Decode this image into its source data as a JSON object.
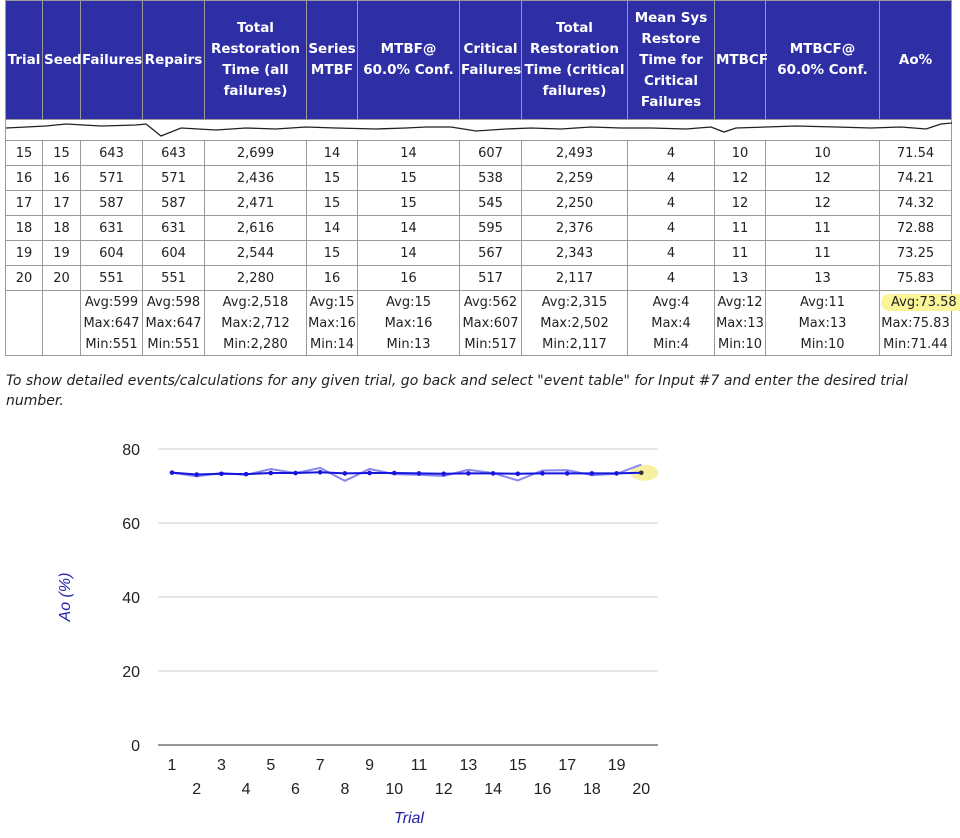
{
  "table": {
    "headers": [
      "Trial",
      "Seed",
      "Failures",
      "Repairs",
      "Total Restoration Time (all failures)",
      "Series MTBF",
      "MTBF@ 60.0% Conf.",
      "Critical Failures",
      "Total Restoration Time (critical failures)",
      "Mean Sys Restore Time for Critical Failures",
      "MTBCF",
      "MTBCF@ 60.0% Conf.",
      "Ao%"
    ],
    "rows": [
      [
        "15",
        "15",
        "643",
        "643",
        "2,699",
        "14",
        "14",
        "607",
        "2,493",
        "4",
        "10",
        "10",
        "71.54"
      ],
      [
        "16",
        "16",
        "571",
        "571",
        "2,436",
        "15",
        "15",
        "538",
        "2,259",
        "4",
        "12",
        "12",
        "74.21"
      ],
      [
        "17",
        "17",
        "587",
        "587",
        "2,471",
        "15",
        "15",
        "545",
        "2,250",
        "4",
        "12",
        "12",
        "74.32"
      ],
      [
        "18",
        "18",
        "631",
        "631",
        "2,616",
        "14",
        "14",
        "595",
        "2,376",
        "4",
        "11",
        "11",
        "72.88"
      ],
      [
        "19",
        "19",
        "604",
        "604",
        "2,544",
        "15",
        "14",
        "567",
        "2,343",
        "4",
        "11",
        "11",
        "73.25"
      ],
      [
        "20",
        "20",
        "551",
        "551",
        "2,280",
        "16",
        "16",
        "517",
        "2,117",
        "4",
        "13",
        "13",
        "75.83"
      ]
    ],
    "summary": [
      [
        "",
        "",
        ""
      ],
      [
        "",
        "",
        ""
      ],
      [
        "Avg:599",
        "Max:647",
        "Min:551"
      ],
      [
        "Avg:598",
        "Max:647",
        "Min:551"
      ],
      [
        "Avg:2,518",
        "Max:2,712",
        "Min:2,280"
      ],
      [
        "Avg:15",
        "Max:16",
        "Min:14"
      ],
      [
        "Avg:15",
        "Max:16",
        "Min:13"
      ],
      [
        "Avg:562",
        "Max:607",
        "Min:517"
      ],
      [
        "Avg:2,315",
        "Max:2,502",
        "Min:2,117"
      ],
      [
        "Avg:4",
        "Max:4",
        "Min:4"
      ],
      [
        "Avg:12",
        "Max:13",
        "Min:10"
      ],
      [
        "Avg:11",
        "Max:13",
        "Min:10"
      ],
      [
        "Avg:73.58",
        "Max:75.83",
        "Min:71.44"
      ]
    ],
    "highlight_color": "#fbf59a",
    "header_bg": "#2e2ea5"
  },
  "note": "To show detailed events/calculations for any given trial, go back and select \"event table\" for Input #7 and enter the desired trial number.",
  "chart_data": {
    "type": "line",
    "xlabel": "Trial",
    "ylabel": "Ao (%)",
    "ylim": [
      0,
      80
    ],
    "yticks": [
      0,
      20,
      40,
      60,
      80
    ],
    "x": [
      1,
      2,
      3,
      4,
      5,
      6,
      7,
      8,
      9,
      10,
      11,
      12,
      13,
      14,
      15,
      16,
      17,
      18,
      19,
      20
    ],
    "series": [
      {
        "color": "#8888ee",
        "values": [
          73.6,
          72.6,
          73.5,
          73.0,
          74.6,
          73.5,
          74.9,
          71.4,
          74.6,
          73.2,
          73.0,
          72.7,
          74.4,
          73.5,
          71.5,
          74.2,
          74.3,
          72.9,
          73.3,
          75.8
        ]
      },
      {
        "color": "#1515dd",
        "values": [
          73.6,
          73.1,
          73.3,
          73.2,
          73.5,
          73.5,
          73.7,
          73.4,
          73.5,
          73.5,
          73.4,
          73.3,
          73.4,
          73.4,
          73.3,
          73.4,
          73.4,
          73.4,
          73.4,
          73.58
        ]
      }
    ],
    "grid": true,
    "highlight_last_point_color": "#f6f0a0"
  }
}
